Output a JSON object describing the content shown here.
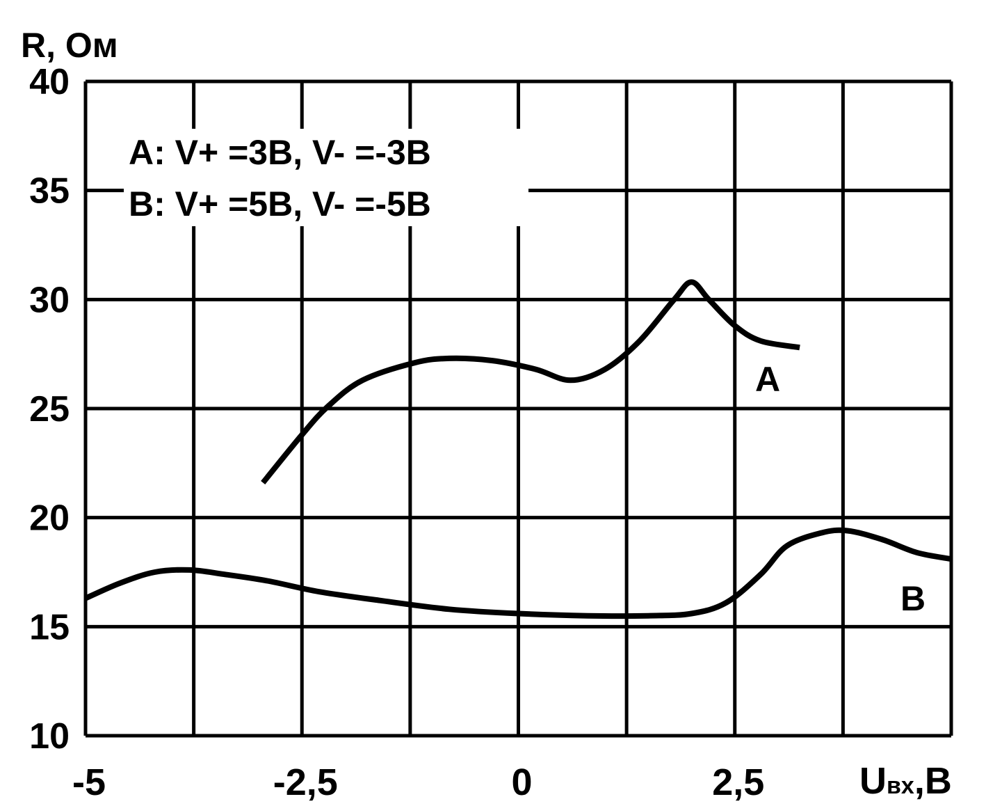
{
  "chart_data": {
    "type": "line",
    "title": "",
    "ylabel": "R, Ом",
    "xlabel_main": "U",
    "xlabel_sub": "вх",
    "xlabel_tail": ",В",
    "xlim": [
      -5,
      5
    ],
    "ylim": [
      10,
      40
    ],
    "x_ticks": [
      -5,
      -2.5,
      0,
      2.5
    ],
    "x_tick_labels": [
      "-5",
      "-2,5",
      "0",
      "2,5"
    ],
    "y_ticks": [
      10,
      15,
      20,
      25,
      30,
      35,
      40
    ],
    "y_tick_labels": [
      "10",
      "15",
      "20",
      "25",
      "30",
      "35",
      "40"
    ],
    "grid": true,
    "legend": {
      "placement": "top-left",
      "entries": [
        "A: V+ =3B, V- =-3B",
        "B: V+ =5B, V- =-5B"
      ]
    },
    "series": [
      {
        "name": "A",
        "color": "#000000",
        "x": [
          -2.95,
          -2.5,
          -2.2,
          -1.8,
          -1.2,
          -0.8,
          -0.3,
          0.2,
          0.6,
          1.0,
          1.4,
          1.8,
          2.0,
          2.2,
          2.5,
          2.8,
          3.25
        ],
        "y": [
          21.6,
          23.8,
          25.1,
          26.3,
          27.1,
          27.3,
          27.2,
          26.8,
          26.3,
          26.8,
          28.1,
          30.0,
          30.8,
          30.0,
          28.8,
          28.1,
          27.8
        ]
      },
      {
        "name": "B",
        "color": "#000000",
        "x": [
          -5,
          -4.6,
          -4.2,
          -3.8,
          -3.4,
          -2.9,
          -2.3,
          -1.6,
          -0.8,
          0,
          0.8,
          1.5,
          2.0,
          2.4,
          2.8,
          3.1,
          3.5,
          3.8,
          4.2,
          4.6,
          5.0
        ],
        "y": [
          16.3,
          17.0,
          17.5,
          17.6,
          17.4,
          17.1,
          16.6,
          16.2,
          15.8,
          15.6,
          15.5,
          15.5,
          15.6,
          16.1,
          17.4,
          18.7,
          19.3,
          19.4,
          19.0,
          18.4,
          18.1
        ]
      }
    ]
  }
}
